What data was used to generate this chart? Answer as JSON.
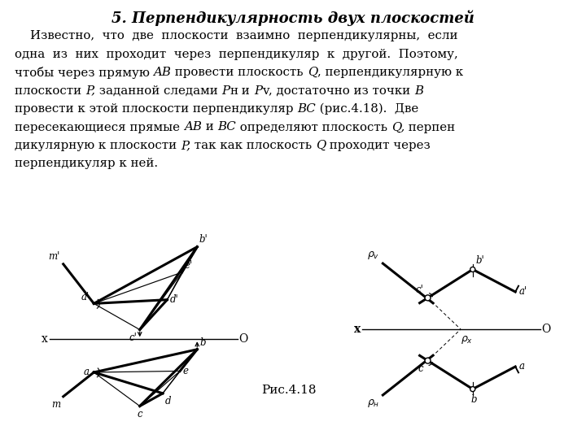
{
  "title": "5. Перпендикулярность двух плоскостей",
  "bg_color": "#ffffff",
  "text_lines": [
    "    Известно,  что  две  плоскости  взаимно  перпендикулярны,  если",
    "одна  из  них  проходит  через  перпендикуляр  к  другой.  Поэтому,",
    "чтобы через прямую AB провести плоскость Q, перпендикулярную к",
    "плоскости P, заданной следами Pн и Pv, достаточно из точки B",
    "провести к этой плоскости перпендикуляр BC (рис.4.18). Две",
    "пересекающиеся прямые AB и BC определяют плоскость Q, перпен",
    "дикулярную к плоскости P, так как плоскость Q проходит через",
    "перпендикуляр к ней."
  ],
  "lw_thick": 2.2,
  "lw_thin": 0.85,
  "lw_med": 1.4
}
